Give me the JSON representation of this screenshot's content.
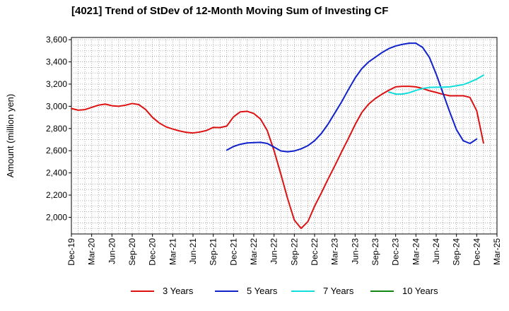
{
  "chart_data": {
    "type": "line",
    "title": "[4021]  Trend of StDev of 12-Month Moving Sum of Investing CF",
    "ylabel": "Amount (million yen)",
    "xlabel": "",
    "ylim": [
      1850,
      3620
    ],
    "yticks": [
      2000,
      2200,
      2400,
      2600,
      2800,
      3000,
      3200,
      3400,
      3600
    ],
    "ytick_labels": [
      "2,000",
      "2,200",
      "2,400",
      "2,600",
      "2,800",
      "3,000",
      "3,200",
      "3,400",
      "3,600"
    ],
    "xticks": [
      "Dec-19",
      "Mar-20",
      "Jun-20",
      "Sep-20",
      "Dec-20",
      "Mar-21",
      "Jun-21",
      "Sep-21",
      "Dec-21",
      "Mar-22",
      "Jun-22",
      "Sep-22",
      "Dec-22",
      "Mar-23",
      "Jun-23",
      "Sep-23",
      "Dec-23",
      "Mar-24",
      "Jun-24",
      "Sep-24",
      "Dec-24",
      "Mar-25"
    ],
    "grid": true,
    "legend_position": "bottom",
    "series": [
      {
        "name": "3 Years",
        "color": "#dd1111",
        "start": "Dec-19",
        "values": [
          2980,
          2965,
          2970,
          2990,
          3010,
          3020,
          3005,
          3000,
          3010,
          3025,
          3015,
          2970,
          2900,
          2850,
          2815,
          2795,
          2778,
          2765,
          2760,
          2768,
          2782,
          2810,
          2808,
          2822,
          2905,
          2950,
          2955,
          2935,
          2885,
          2780,
          2600,
          2390,
          2170,
          1975,
          1900,
          1960,
          2100,
          2220,
          2345,
          2465,
          2590,
          2710,
          2835,
          2945,
          3020,
          3070,
          3110,
          3145,
          3175,
          3180,
          3180,
          3175,
          3160,
          3140,
          3125,
          3108,
          3095,
          3095,
          3095,
          3080,
          2960,
          2670
        ]
      },
      {
        "name": "5 Years",
        "color": "#1122cc",
        "start": "Nov-21",
        "values": [
          2605,
          2638,
          2658,
          2670,
          2673,
          2675,
          2665,
          2632,
          2598,
          2590,
          2598,
          2617,
          2645,
          2690,
          2755,
          2840,
          2940,
          3040,
          3150,
          3255,
          3340,
          3400,
          3442,
          3485,
          3520,
          3543,
          3558,
          3568,
          3568,
          3530,
          3440,
          3290,
          3120,
          2950,
          2790,
          2690,
          2665,
          2705
        ]
      },
      {
        "name": "7 Years",
        "color": "#11dddd",
        "start": "Nov-23",
        "values": [
          3128,
          3110,
          3110,
          3122,
          3143,
          3160,
          3170,
          3172,
          3172,
          3175,
          3185,
          3195,
          3218,
          3245,
          3280
        ]
      },
      {
        "name": "10 Years",
        "color": "#118811",
        "start": "Dec-24",
        "values": []
      }
    ]
  }
}
